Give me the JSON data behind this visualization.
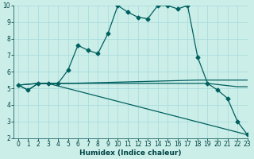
{
  "xlabel": "Humidex (Indice chaleur)",
  "bg_color": "#cceee8",
  "line_color": "#006060",
  "grid_color": "#aadddd",
  "xlim": [
    -0.5,
    23
  ],
  "ylim": [
    2,
    10
  ],
  "yticks": [
    2,
    3,
    4,
    5,
    6,
    7,
    8,
    9,
    10
  ],
  "xticks": [
    0,
    1,
    2,
    3,
    4,
    5,
    6,
    7,
    8,
    9,
    10,
    11,
    12,
    13,
    14,
    15,
    16,
    17,
    18,
    19,
    20,
    21,
    22,
    23
  ],
  "line1_x": [
    0,
    1,
    2,
    3,
    4,
    5,
    6,
    7,
    8,
    9,
    10,
    11,
    12,
    13,
    14,
    15,
    16,
    17,
    18,
    19,
    20,
    21,
    22,
    23
  ],
  "line1_y": [
    5.2,
    4.9,
    5.3,
    5.3,
    5.3,
    6.1,
    7.6,
    7.3,
    7.1,
    8.3,
    10.0,
    9.6,
    9.3,
    9.2,
    10.0,
    10.0,
    9.8,
    10.0,
    6.9,
    5.3,
    4.9,
    4.4,
    3.0,
    2.2
  ],
  "line2_x": [
    0,
    2,
    3,
    4,
    5,
    18,
    19,
    23
  ],
  "line2_y": [
    5.2,
    5.3,
    5.3,
    5.3,
    5.3,
    5.5,
    5.5,
    5.5
  ],
  "line3_x": [
    0,
    2,
    3,
    4,
    5,
    18,
    19,
    22,
    23
  ],
  "line3_y": [
    5.2,
    5.3,
    5.3,
    5.3,
    5.3,
    5.3,
    5.3,
    5.1,
    5.1
  ],
  "line4_x": [
    0,
    1,
    2,
    3,
    23
  ],
  "line4_y": [
    5.2,
    4.9,
    5.3,
    5.3,
    2.2
  ]
}
